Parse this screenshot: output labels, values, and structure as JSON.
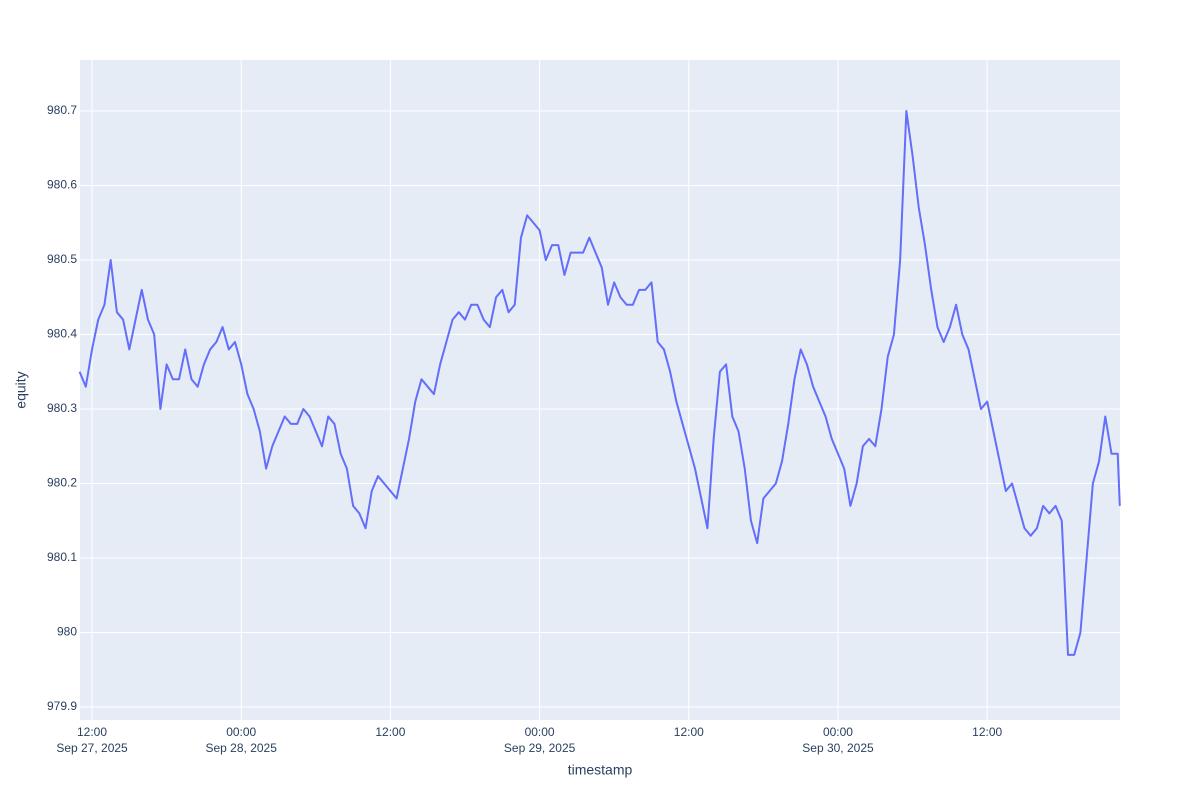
{
  "chart_data": {
    "type": "line",
    "x_label": "timestamp",
    "y_label": "equity",
    "xlim": [
      "2025-09-27 11:02",
      "2025-09-30 22:41"
    ],
    "ylim": [
      979.8826,
      980.7685
    ],
    "yticks": [
      {
        "value": 979.9,
        "label": "979.9"
      },
      980,
      {
        "value": 980.1,
        "label": "980.1"
      },
      {
        "value": 980.2,
        "label": "980.2"
      },
      {
        "value": 980.3,
        "label": "980.3"
      },
      {
        "value": 980.4,
        "label": "980.4"
      },
      {
        "value": 980.5,
        "label": "980.5"
      },
      {
        "value": 980.6,
        "label": "980.6"
      },
      {
        "value": 980.7,
        "label": "980.7"
      }
    ],
    "xticks": [
      {
        "value": "2025-09-27 12:00",
        "label": [
          "12:00",
          "Sep 27, 2025"
        ]
      },
      {
        "value": "2025-09-28 00:00",
        "label": [
          "00:00",
          "Sep 28, 2025"
        ]
      },
      {
        "value": "2025-09-28 12:00",
        "label": [
          "12:00"
        ]
      },
      {
        "value": "2025-09-29 00:00",
        "label": [
          "00:00",
          "Sep 29, 2025"
        ]
      },
      {
        "value": "2025-09-29 12:00",
        "label": [
          "12:00"
        ]
      },
      {
        "value": "2025-09-30 00:00",
        "label": [
          "00:00",
          "Sep 30, 2025"
        ]
      },
      {
        "value": "2025-09-30 12:00",
        "label": [
          "12:00"
        ]
      }
    ],
    "grid": true,
    "x": [
      "2025-09-27 11:00",
      "2025-09-27 11:30",
      "2025-09-27 12:00",
      "2025-09-27 12:30",
      "2025-09-27 13:00",
      "2025-09-27 13:30",
      "2025-09-27 14:00",
      "2025-09-27 14:30",
      "2025-09-27 15:00",
      "2025-09-27 15:30",
      "2025-09-27 16:00",
      "2025-09-27 16:30",
      "2025-09-27 17:00",
      "2025-09-27 17:30",
      "2025-09-27 18:00",
      "2025-09-27 18:30",
      "2025-09-27 19:00",
      "2025-09-27 19:30",
      "2025-09-27 20:00",
      "2025-09-27 20:30",
      "2025-09-27 21:00",
      "2025-09-27 21:30",
      "2025-09-27 22:00",
      "2025-09-27 22:30",
      "2025-09-27 23:00",
      "2025-09-27 23:30",
      "2025-09-28 00:00",
      "2025-09-28 00:30",
      "2025-09-28 01:00",
      "2025-09-28 01:30",
      "2025-09-28 02:00",
      "2025-09-28 02:30",
      "2025-09-28 03:00",
      "2025-09-28 03:30",
      "2025-09-28 04:00",
      "2025-09-28 04:30",
      "2025-09-28 05:00",
      "2025-09-28 05:30",
      "2025-09-28 06:00",
      "2025-09-28 06:30",
      "2025-09-28 07:00",
      "2025-09-28 07:30",
      "2025-09-28 08:00",
      "2025-09-28 08:30",
      "2025-09-28 09:00",
      "2025-09-28 09:30",
      "2025-09-28 10:00",
      "2025-09-28 10:30",
      "2025-09-28 11:00",
      "2025-09-28 11:30",
      "2025-09-28 12:00",
      "2025-09-28 12:30",
      "2025-09-28 13:00",
      "2025-09-28 13:30",
      "2025-09-28 14:00",
      "2025-09-28 14:30",
      "2025-09-28 15:00",
      "2025-09-28 15:30",
      "2025-09-28 16:00",
      "2025-09-28 16:30",
      "2025-09-28 17:00",
      "2025-09-28 17:30",
      "2025-09-28 18:00",
      "2025-09-28 18:30",
      "2025-09-28 19:00",
      "2025-09-28 19:30",
      "2025-09-28 20:00",
      "2025-09-28 20:30",
      "2025-09-28 21:00",
      "2025-09-28 21:30",
      "2025-09-28 22:00",
      "2025-09-28 22:30",
      "2025-09-28 23:00",
      "2025-09-28 23:30",
      "2025-09-29 00:00",
      "2025-09-29 00:30",
      "2025-09-29 01:00",
      "2025-09-29 01:30",
      "2025-09-29 02:00",
      "2025-09-29 02:30",
      "2025-09-29 03:00",
      "2025-09-29 03:30",
      "2025-09-29 04:00",
      "2025-09-29 04:30",
      "2025-09-29 05:00",
      "2025-09-29 05:30",
      "2025-09-29 06:00",
      "2025-09-29 06:30",
      "2025-09-29 07:00",
      "2025-09-29 07:30",
      "2025-09-29 08:00",
      "2025-09-29 08:30",
      "2025-09-29 09:00",
      "2025-09-29 09:30",
      "2025-09-29 10:00",
      "2025-09-29 10:30",
      "2025-09-29 11:00",
      "2025-09-29 11:30",
      "2025-09-29 12:00",
      "2025-09-29 12:30",
      "2025-09-29 13:00",
      "2025-09-29 13:30",
      "2025-09-29 14:00",
      "2025-09-29 14:30",
      "2025-09-29 15:00",
      "2025-09-29 15:30",
      "2025-09-29 16:00",
      "2025-09-29 16:30",
      "2025-09-29 17:00",
      "2025-09-29 17:30",
      "2025-09-29 18:00",
      "2025-09-29 18:30",
      "2025-09-29 19:00",
      "2025-09-29 19:30",
      "2025-09-29 20:00",
      "2025-09-29 20:30",
      "2025-09-29 21:00",
      "2025-09-29 21:30",
      "2025-09-29 22:00",
      "2025-09-29 22:30",
      "2025-09-29 23:00",
      "2025-09-29 23:30",
      "2025-09-30 00:00",
      "2025-09-30 00:30",
      "2025-09-30 01:00",
      "2025-09-30 01:30",
      "2025-09-30 02:00",
      "2025-09-30 02:30",
      "2025-09-30 03:00",
      "2025-09-30 03:30",
      "2025-09-30 04:00",
      "2025-09-30 04:30",
      "2025-09-30 05:00",
      "2025-09-30 05:30",
      "2025-09-30 06:00",
      "2025-09-30 06:30",
      "2025-09-30 07:00",
      "2025-09-30 07:30",
      "2025-09-30 08:00",
      "2025-09-30 08:30",
      "2025-09-30 09:00",
      "2025-09-30 09:30",
      "2025-09-30 10:00",
      "2025-09-30 10:30",
      "2025-09-30 11:00",
      "2025-09-30 11:30",
      "2025-09-30 12:00",
      "2025-09-30 12:30",
      "2025-09-30 13:00",
      "2025-09-30 13:30",
      "2025-09-30 14:00",
      "2025-09-30 14:30",
      "2025-09-30 15:00",
      "2025-09-30 15:30",
      "2025-09-30 16:00",
      "2025-09-30 16:30",
      "2025-09-30 17:00",
      "2025-09-30 17:30",
      "2025-09-30 18:00",
      "2025-09-30 18:30",
      "2025-09-30 19:00",
      "2025-09-30 19:30",
      "2025-09-30 20:00",
      "2025-09-30 20:30",
      "2025-09-30 21:00",
      "2025-09-30 21:30",
      "2025-09-30 22:00",
      "2025-09-30 22:30",
      "2025-09-30 22:40"
    ],
    "series": [
      {
        "name": "equity",
        "color": "#636efa",
        "values": [
          980.35,
          980.33,
          980.38,
          980.42,
          980.44,
          980.5,
          980.43,
          980.42,
          980.38,
          980.42,
          980.46,
          980.42,
          980.4,
          980.3,
          980.36,
          980.34,
          980.34,
          980.38,
          980.34,
          980.33,
          980.36,
          980.38,
          980.39,
          980.41,
          980.38,
          980.39,
          980.36,
          980.32,
          980.3,
          980.27,
          980.22,
          980.25,
          980.27,
          980.29,
          980.28,
          980.28,
          980.3,
          980.29,
          980.27,
          980.25,
          980.29,
          980.28,
          980.24,
          980.22,
          980.17,
          980.16,
          980.14,
          980.19,
          980.21,
          980.2,
          980.19,
          980.18,
          980.22,
          980.26,
          980.31,
          980.34,
          980.33,
          980.32,
          980.36,
          980.39,
          980.42,
          980.43,
          980.42,
          980.44,
          980.44,
          980.42,
          980.41,
          980.45,
          980.46,
          980.43,
          980.44,
          980.53,
          980.56,
          980.55,
          980.54,
          980.5,
          980.52,
          980.52,
          980.48,
          980.51,
          980.51,
          980.51,
          980.53,
          980.51,
          980.49,
          980.44,
          980.47,
          980.45,
          980.44,
          980.44,
          980.46,
          980.46,
          980.47,
          980.39,
          980.38,
          980.35,
          980.31,
          980.28,
          980.25,
          980.22,
          980.18,
          980.14,
          980.26,
          980.35,
          980.36,
          980.29,
          980.27,
          980.22,
          980.15,
          980.12,
          980.18,
          980.19,
          980.2,
          980.23,
          980.28,
          980.34,
          980.38,
          980.36,
          980.33,
          980.31,
          980.29,
          980.26,
          980.24,
          980.22,
          980.17,
          980.2,
          980.25,
          980.26,
          980.25,
          980.3,
          980.37,
          980.4,
          980.5,
          980.7,
          980.64,
          980.57,
          980.52,
          980.46,
          980.41,
          980.39,
          980.41,
          980.44,
          980.4,
          980.38,
          980.34,
          980.3,
          980.31,
          980.27,
          980.23,
          980.19,
          980.2,
          980.17,
          980.14,
          980.13,
          980.14,
          980.17,
          980.16,
          980.17,
          980.15,
          979.97,
          979.97,
          980.0,
          980.1,
          980.2,
          980.23,
          980.29,
          980.24,
          980.24,
          980.17
        ]
      }
    ]
  }
}
